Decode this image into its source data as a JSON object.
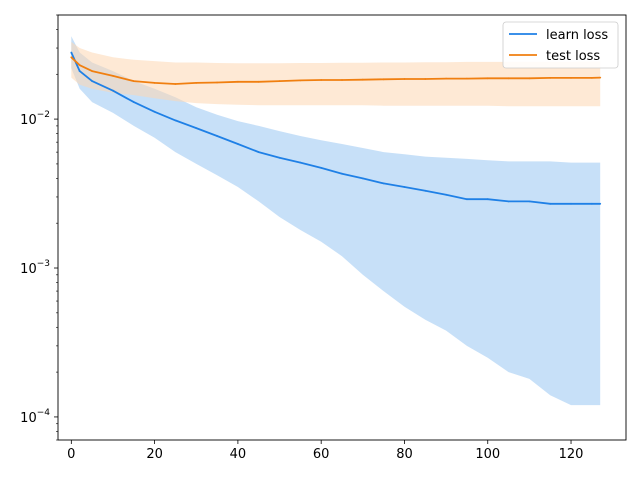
{
  "chart_data": {
    "type": "line",
    "title": "",
    "xlabel": "",
    "ylabel": "",
    "xlim": [
      -3.2,
      133.2
    ],
    "ylim": [
      7e-05,
      0.05
    ],
    "yscale": "log",
    "grid": false,
    "legend_position": "top-right",
    "x_ticks": [
      0,
      20,
      40,
      60,
      80,
      100,
      120
    ],
    "y_ticks": [
      {
        "value": 0.0001,
        "base": "10",
        "exp": "−4"
      },
      {
        "value": 0.001,
        "base": "10",
        "exp": "−3"
      },
      {
        "value": 0.01,
        "base": "10",
        "exp": "−2"
      }
    ],
    "series": [
      {
        "name": "learn loss",
        "color": "#1f80e6",
        "band_color": "#a9d0f5",
        "x": [
          0,
          2,
          5,
          10,
          15,
          20,
          25,
          30,
          35,
          40,
          45,
          50,
          55,
          60,
          65,
          70,
          75,
          80,
          85,
          90,
          95,
          100,
          105,
          110,
          115,
          120,
          125,
          127
        ],
        "y": [
          0.028,
          0.021,
          0.018,
          0.0155,
          0.013,
          0.0112,
          0.0098,
          0.0087,
          0.0077,
          0.0068,
          0.006,
          0.0055,
          0.0051,
          0.0047,
          0.0043,
          0.004,
          0.0037,
          0.0035,
          0.0033,
          0.0031,
          0.0029,
          0.0029,
          0.0028,
          0.0028,
          0.0027,
          0.0027,
          0.0027,
          0.0027
        ],
        "lower": [
          0.022,
          0.016,
          0.013,
          0.011,
          0.009,
          0.0075,
          0.006,
          0.005,
          0.0042,
          0.0035,
          0.0028,
          0.0022,
          0.0018,
          0.0015,
          0.0012,
          0.0009,
          0.0007,
          0.00055,
          0.00045,
          0.00038,
          0.0003,
          0.00025,
          0.0002,
          0.00018,
          0.00014,
          0.00012,
          0.00012,
          0.00012
        ],
        "upper": [
          0.036,
          0.028,
          0.024,
          0.021,
          0.018,
          0.016,
          0.014,
          0.012,
          0.0107,
          0.0097,
          0.009,
          0.0083,
          0.0077,
          0.0072,
          0.0068,
          0.0064,
          0.006,
          0.0058,
          0.0056,
          0.0055,
          0.0054,
          0.0053,
          0.0052,
          0.0052,
          0.0052,
          0.0051,
          0.0051,
          0.0051
        ]
      },
      {
        "name": "test loss",
        "color": "#f07f10",
        "band_color": "#fdd7b3",
        "x": [
          0,
          2,
          5,
          10,
          15,
          20,
          25,
          30,
          35,
          40,
          45,
          50,
          55,
          60,
          65,
          70,
          75,
          80,
          85,
          90,
          95,
          100,
          105,
          110,
          115,
          120,
          125,
          127
        ],
        "y": [
          0.026,
          0.023,
          0.021,
          0.0195,
          0.018,
          0.0175,
          0.0172,
          0.0175,
          0.0176,
          0.0178,
          0.0178,
          0.018,
          0.0182,
          0.0183,
          0.0183,
          0.0184,
          0.0185,
          0.0186,
          0.0186,
          0.0187,
          0.0187,
          0.0188,
          0.0188,
          0.0188,
          0.0189,
          0.0189,
          0.0189,
          0.019
        ],
        "lower": [
          0.019,
          0.017,
          0.016,
          0.015,
          0.0145,
          0.0138,
          0.0132,
          0.0128,
          0.0126,
          0.0125,
          0.0124,
          0.0124,
          0.0124,
          0.0124,
          0.0124,
          0.0124,
          0.0123,
          0.0123,
          0.0123,
          0.0123,
          0.0123,
          0.0123,
          0.0122,
          0.0122,
          0.0122,
          0.0122,
          0.0122,
          0.0122
        ],
        "upper": [
          0.033,
          0.03,
          0.028,
          0.026,
          0.025,
          0.0245,
          0.024,
          0.024,
          0.0238,
          0.0237,
          0.0237,
          0.0237,
          0.0238,
          0.0238,
          0.0239,
          0.0239,
          0.024,
          0.024,
          0.0241,
          0.0241,
          0.0242,
          0.0242,
          0.0242,
          0.0243,
          0.0243,
          0.0243,
          0.0244,
          0.0244
        ]
      }
    ]
  }
}
